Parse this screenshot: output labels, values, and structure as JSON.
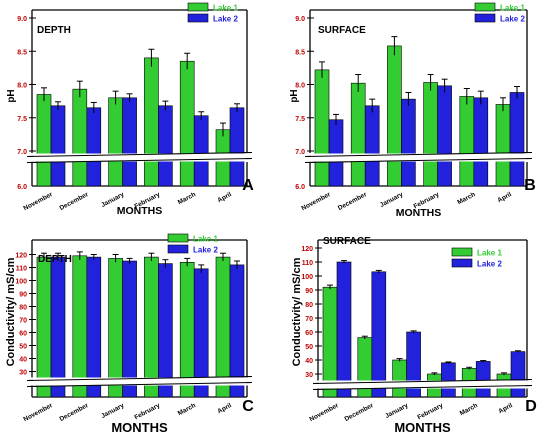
{
  "colors": {
    "lake1": "#33cc33",
    "lake2": "#2222dd",
    "axis": "#000000"
  },
  "chart_data": [
    {
      "panel": "A",
      "title": "DEPTH",
      "type": "bar",
      "categories": [
        "November",
        "December",
        "January",
        "February",
        "March",
        "April"
      ],
      "series": [
        {
          "name": "Lake 1",
          "values": [
            7.85,
            7.93,
            7.8,
            8.4,
            8.35,
            7.32
          ],
          "errors": [
            0.1,
            0.12,
            0.1,
            0.13,
            0.12,
            0.1
          ]
        },
        {
          "name": "Lake 2",
          "values": [
            7.68,
            7.65,
            7.8,
            7.68,
            7.53,
            7.65
          ],
          "errors": [
            0.06,
            0.08,
            0.06,
            0.07,
            0.06,
            0.06
          ]
        }
      ],
      "xlabel": "MONTHS",
      "ylabel": "pH",
      "axis_break": [
        6.0,
        7.0
      ],
      "yticks_top": [
        "7.0",
        "7.5",
        "8.0",
        "8.5",
        "9.0"
      ],
      "yticks_bottom": [
        "6.0"
      ],
      "legend": "top-right"
    },
    {
      "panel": "B",
      "title": "SURFACE",
      "type": "bar",
      "categories": [
        "November",
        "December",
        "January",
        "February",
        "March",
        "April"
      ],
      "series": [
        {
          "name": "Lake 1",
          "values": [
            8.22,
            8.02,
            8.58,
            8.03,
            7.82,
            7.7
          ],
          "errors": [
            0.12,
            0.13,
            0.14,
            0.12,
            0.12,
            0.1
          ]
        },
        {
          "name": "Lake 2",
          "values": [
            7.47,
            7.68,
            7.78,
            7.98,
            7.8,
            7.88
          ],
          "errors": [
            0.08,
            0.1,
            0.1,
            0.1,
            0.1,
            0.09
          ]
        }
      ],
      "xlabel": "MONTHS",
      "ylabel": "pH",
      "axis_break": [
        6.0,
        7.0
      ],
      "yticks_top": [
        "7.0",
        "7.5",
        "8.0",
        "8.5",
        "9.0"
      ],
      "yticks_bottom": [
        "6.0"
      ],
      "legend": "top-right"
    },
    {
      "panel": "C",
      "title": "DEPTH",
      "type": "bar",
      "categories": [
        "November",
        "December",
        "January",
        "February",
        "March",
        "April"
      ],
      "series": [
        {
          "name": "Lake 1",
          "values": [
            118,
            119,
            117,
            118,
            114,
            118
          ],
          "errors": [
            3,
            3,
            3,
            3,
            3,
            3
          ]
        },
        {
          "name": "Lake 2",
          "values": [
            118,
            118,
            115,
            113,
            109,
            112
          ],
          "errors": [
            3,
            2,
            2,
            3,
            3,
            3
          ]
        }
      ],
      "xlabel": "MONTHS",
      "ylabel": "Conductivity/ mS/cm",
      "axis_break": [
        0,
        25
      ],
      "yticks_top": [
        "30",
        "40",
        "50",
        "60",
        "70",
        "80",
        "90",
        "100",
        "110",
        "120"
      ],
      "yticks_bottom": [],
      "legend": "top-right"
    },
    {
      "panel": "D",
      "title": "SURFACE",
      "type": "bar",
      "categories": [
        "November",
        "December",
        "January",
        "February",
        "March",
        "April"
      ],
      "series": [
        {
          "name": "Lake 1",
          "values": [
            92,
            56,
            40,
            30,
            34,
            30
          ],
          "errors": [
            1.5,
            1,
            1,
            0.8,
            0.8,
            0.8
          ]
        },
        {
          "name": "Lake 2",
          "values": [
            110,
            103,
            60,
            38,
            39,
            46
          ],
          "errors": [
            1,
            1,
            0.8,
            0.6,
            0.6,
            0.6
          ]
        }
      ],
      "xlabel": "MONTHS",
      "ylabel": "Conductivity/ mS/cm",
      "axis_break": [
        0,
        25
      ],
      "yticks_top": [
        "30",
        "40",
        "50",
        "60",
        "70",
        "80",
        "90",
        "100",
        "110",
        "120"
      ],
      "yticks_bottom": [],
      "legend": "top-right"
    }
  ]
}
